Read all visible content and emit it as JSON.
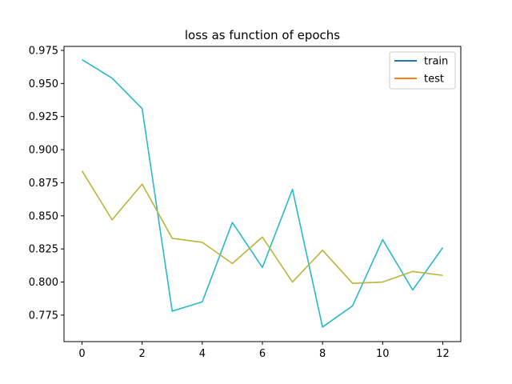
{
  "chart_data": {
    "type": "line",
    "title": "loss as function of epochs",
    "xlabel": "",
    "ylabel": "",
    "xlim": [
      -0.6,
      12.6
    ],
    "ylim": [
      0.755,
      0.978
    ],
    "x_ticks": [
      0,
      2,
      4,
      6,
      8,
      10,
      12
    ],
    "y_ticks": [
      0.775,
      0.8,
      0.825,
      0.85,
      0.875,
      0.9,
      0.925,
      0.95,
      0.975
    ],
    "y_tick_labels": [
      "0.775",
      "0.800",
      "0.825",
      "0.850",
      "0.875",
      "0.900",
      "0.925",
      "0.950",
      "0.975"
    ],
    "grid": false,
    "legend": "top-right",
    "x": [
      0,
      1,
      2,
      3,
      4,
      5,
      6,
      7,
      8,
      9,
      10,
      11,
      12
    ],
    "series": [
      {
        "name": "train",
        "legend_color": "#1f77b4",
        "draw_color": "#29b8cc",
        "values": [
          0.968,
          0.954,
          0.931,
          0.778,
          0.785,
          0.845,
          0.811,
          0.87,
          0.766,
          0.782,
          0.832,
          0.794,
          0.826
        ]
      },
      {
        "name": "test",
        "legend_color": "#ff7f0e",
        "draw_color": "#bcb43a",
        "values": [
          0.884,
          0.847,
          0.874,
          0.833,
          0.83,
          0.814,
          0.834,
          0.8,
          0.824,
          0.799,
          0.8,
          0.808,
          0.805
        ]
      }
    ]
  }
}
